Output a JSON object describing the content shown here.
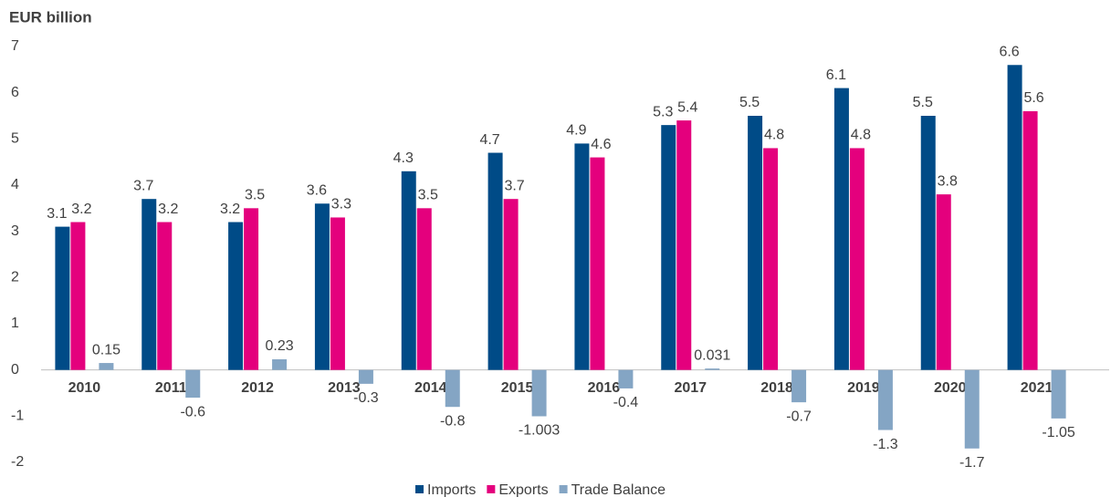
{
  "chart_data": {
    "type": "bar",
    "y_label": "EUR billion",
    "categories": [
      "2010",
      "2011",
      "2012",
      "2013",
      "2014",
      "2015",
      "2016",
      "2017",
      "2018",
      "2019",
      "2020",
      "2021"
    ],
    "series": [
      {
        "name": "Imports",
        "color": "#004b87",
        "values": [
          3.1,
          3.7,
          3.2,
          3.6,
          4.3,
          4.7,
          4.9,
          5.3,
          5.5,
          6.1,
          5.5,
          6.6
        ]
      },
      {
        "name": "Exports",
        "color": "#e4007d",
        "values": [
          3.2,
          3.2,
          3.5,
          3.3,
          3.5,
          3.7,
          4.6,
          5.4,
          4.8,
          4.8,
          3.8,
          5.6
        ]
      },
      {
        "name": "Trade Balance",
        "color": "#84a5c4",
        "values": [
          0.15,
          -0.6,
          0.23,
          -0.3,
          -0.8,
          -1.003,
          -0.4,
          0.031,
          -0.7,
          -1.3,
          -1.7,
          -1.05
        ]
      }
    ],
    "ylim": [
      -2,
      7
    ],
    "yticks": [
      -2,
      -1,
      0,
      1,
      2,
      3,
      4,
      5,
      6,
      7
    ],
    "grid": false,
    "legend": "bottom"
  }
}
